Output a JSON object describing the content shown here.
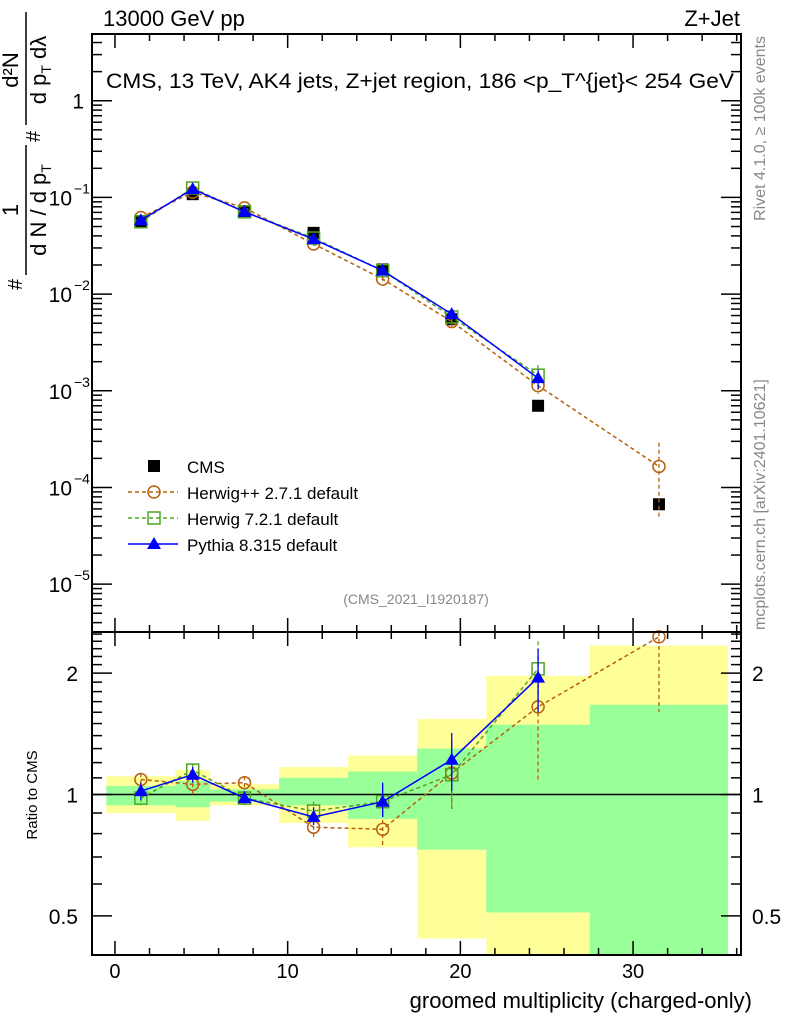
{
  "header": {
    "left": "13000 GeV pp",
    "right": "Z+Jet"
  },
  "side_texts": {
    "rivet": "Rivet 4.1.0, ≥ 100k events",
    "mcplots": "mcplots.cern.ch [arXiv:2401.10621]"
  },
  "chart_data": [
    {
      "type": "scatter",
      "title": "CMS, 13 TeV, AK4 jets, Z+jet region, 186 <p_T^{jet}< 254 GeV",
      "title_parts": {
        "main": "CMS, 13 TeV, AK4 jets, Z+jet region, 186 <p",
        "sup": "{jet}",
        "sub": "T",
        "end": "}< 254 GeV"
      },
      "ylabel_parts": {
        "hash": "#",
        "num1": "1",
        "den1": "d N / d p",
        "t1": "T",
        "num2": "d²N",
        "den2": "d p",
        "t2": "T",
        "den2b": " dλ"
      },
      "yscale": "log",
      "ylim": [
        3.2e-06,
        4.9
      ],
      "xlim": [
        -1.33,
        36.25
      ],
      "yticks": [
        {
          "v": 1,
          "label": "1"
        },
        {
          "v": 0.1,
          "label": "10",
          "exp": "−1"
        },
        {
          "v": 0.01,
          "label": "10",
          "exp": "−2"
        },
        {
          "v": 0.001,
          "label": "10",
          "exp": "−3"
        },
        {
          "v": 0.0001,
          "label": "10",
          "exp": "−4"
        },
        {
          "v": 1e-05,
          "label": "10",
          "exp": "−5"
        }
      ],
      "watermark": "(CMS_2021_I1920187)",
      "legend_position": "bottom-left",
      "x": [
        1.5,
        4.5,
        7.5,
        11.5,
        15.5,
        19.5,
        24.5,
        31.5
      ],
      "series": [
        {
          "name": "CMS",
          "color": "#000000",
          "marker": "square-filled",
          "line": "none",
          "values": [
            0.057,
            0.108,
            0.072,
            0.043,
            0.018,
            0.0055,
            0.0007,
            6.7e-05
          ]
        },
        {
          "name": "Herwig++ 2.7.1 default",
          "color": "#b8600b",
          "marker": "circle-open",
          "line": "dashed",
          "values": [
            0.062,
            0.113,
            0.078,
            0.033,
            0.0143,
            0.0052,
            0.00113,
            0.000165
          ],
          "yerr_low": [
            0.002,
            0.004,
            0.003,
            0.0015,
            0.0008,
            0.0006,
            0.0002,
            0.000115
          ],
          "yerr_high": [
            0.002,
            0.004,
            0.003,
            0.0015,
            0.0008,
            0.0006,
            0.0002,
            0.000125
          ]
        },
        {
          "name": "Herwig 7.2.1 default",
          "color": "#4fa51f",
          "marker": "square-open",
          "line": "dashed",
          "values": [
            0.056,
            0.125,
            0.071,
            0.038,
            0.0175,
            0.0058,
            0.00145
          ],
          "yerr_low": [
            0.002,
            0.004,
            0.003,
            0.002,
            0.001,
            0.0007,
            0.0003
          ],
          "yerr_high": [
            0.002,
            0.004,
            0.003,
            0.002,
            0.001,
            0.0007,
            0.0004
          ]
        },
        {
          "name": "Pythia 8.315 default",
          "color": "#0000ff",
          "marker": "triangle-filled",
          "line": "solid",
          "values": [
            0.058,
            0.122,
            0.071,
            0.037,
            0.0175,
            0.0062,
            0.00135
          ],
          "yerr_low": [
            0.002,
            0.004,
            0.003,
            0.002,
            0.001,
            0.0007,
            0.0003
          ],
          "yerr_high": [
            0.002,
            0.004,
            0.003,
            0.002,
            0.001,
            0.0007,
            0.0003
          ]
        }
      ]
    },
    {
      "type": "scatter",
      "ylabel": "Ratio to CMS",
      "xlabel": "groomed multiplicity (charged-only)",
      "yscale": "log",
      "ylim": [
        0.4,
        2.53
      ],
      "xlim": [
        -1.33,
        36.25
      ],
      "xticks": [
        0,
        10,
        20,
        30
      ],
      "yticks": [
        {
          "v": 0.5,
          "label": "0.5"
        },
        {
          "v": 1,
          "label": "1"
        },
        {
          "v": 2,
          "label": "2"
        }
      ],
      "bins": [
        [
          -0.5,
          3.5
        ],
        [
          3.5,
          5.5
        ],
        [
          5.5,
          9.5
        ],
        [
          9.5,
          13.5
        ],
        [
          13.5,
          17.5
        ],
        [
          17.5,
          21.5
        ],
        [
          21.5,
          27.5
        ],
        [
          27.5,
          35.5
        ]
      ],
      "band_total": {
        "color": "#ffff99",
        "low": [
          0.9,
          0.86,
          0.94,
          0.85,
          0.74,
          0.44,
          0.3,
          0.3
        ],
        "high": [
          1.11,
          1.15,
          1.06,
          1.17,
          1.25,
          1.54,
          1.97,
          2.34
        ]
      },
      "band_stat": {
        "color": "#99ff99",
        "low": [
          0.94,
          0.93,
          0.96,
          0.94,
          0.87,
          0.73,
          0.51,
          0.3
        ],
        "high": [
          1.05,
          1.08,
          1.03,
          1.1,
          1.14,
          1.3,
          1.49,
          1.67
        ]
      },
      "x": [
        1.5,
        4.5,
        7.5,
        11.5,
        15.5,
        19.5,
        24.5,
        31.5
      ],
      "series": [
        {
          "name": "Herwig++ 2.7.1 default",
          "color": "#b8600b",
          "marker": "circle-open",
          "line": "dashed",
          "values": [
            1.09,
            1.06,
            1.07,
            0.83,
            0.82,
            1.13,
            1.65,
            2.46
          ],
          "err_low": [
            1.04,
            1.0,
            1.03,
            0.78,
            0.74,
            0.92,
            1.08,
            1.6
          ],
          "err_high": [
            1.13,
            1.11,
            1.11,
            0.87,
            0.9,
            1.35,
            2.2,
            3.4
          ]
        },
        {
          "name": "Herwig 7.2.1 default",
          "color": "#4fa51f",
          "marker": "square-open",
          "line": "dashed",
          "values": [
            0.98,
            1.15,
            0.98,
            0.91,
            0.96,
            1.12,
            2.05
          ],
          "err_low": [
            0.94,
            1.1,
            0.94,
            0.86,
            0.88,
            0.93,
            1.7
          ],
          "err_high": [
            1.02,
            1.19,
            1.02,
            0.96,
            1.04,
            1.33,
            2.4
          ]
        },
        {
          "name": "Pythia 8.315 default",
          "color": "#0000ff",
          "marker": "triangle-filled",
          "line": "solid",
          "values": [
            1.02,
            1.12,
            0.98,
            0.88,
            0.96,
            1.22,
            1.95
          ],
          "err_low": [
            0.97,
            1.07,
            0.95,
            0.84,
            0.88,
            1.02,
            1.6
          ],
          "err_high": [
            1.07,
            1.17,
            1.02,
            0.93,
            1.07,
            1.42,
            2.3
          ]
        }
      ]
    }
  ]
}
